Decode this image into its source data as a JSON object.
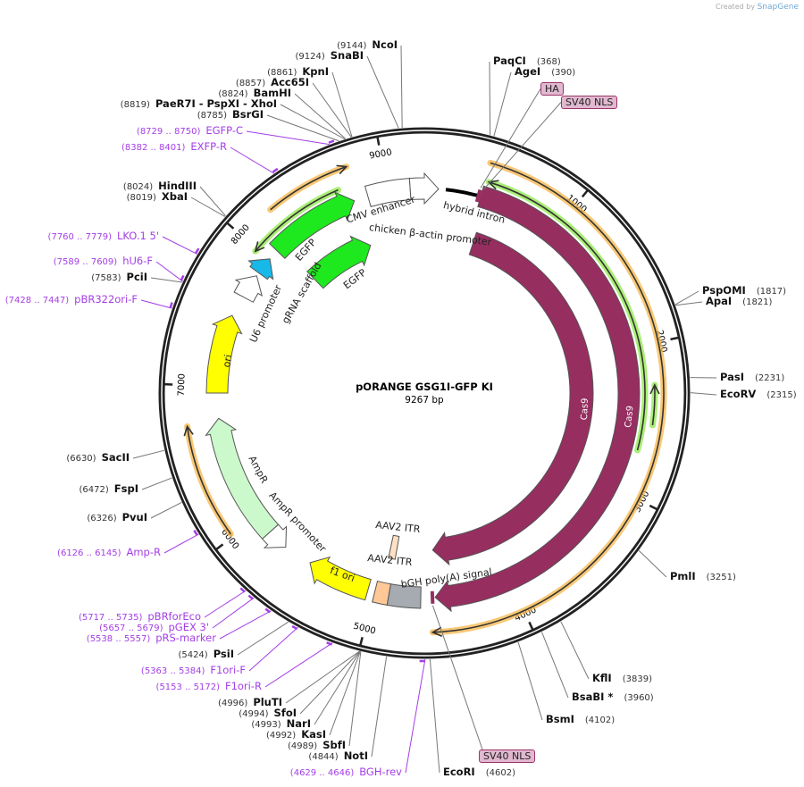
{
  "credit": {
    "prefix": "Created by",
    "brand": "SnapGene"
  },
  "plasmid": {
    "name": "pORANGE GSG1I-GFP KI",
    "length_label": "9267 bp",
    "length": 9267
  },
  "ticks": [
    "1000",
    "2000",
    "3000",
    "4000",
    "5000",
    "6000",
    "7000",
    "8000",
    "9000"
  ],
  "enzymes": [
    {
      "name": "NcoI",
      "pos": 9144
    },
    {
      "name": "SnaBI",
      "pos": 9124
    },
    {
      "name": "KpnI",
      "pos": 8861
    },
    {
      "name": "Acc65I",
      "pos": 8857
    },
    {
      "name": "BamHI",
      "pos": 8824
    },
    {
      "name": "PaeR7I   - PspXI   - XhoI",
      "pos": 8819
    },
    {
      "name": "BsrGI",
      "pos": 8785
    },
    {
      "name": "HindIII",
      "pos": 8024
    },
    {
      "name": "XbaI",
      "pos": 8019
    },
    {
      "name": "PciI",
      "pos": 7583
    },
    {
      "name": "SacII",
      "pos": 6630
    },
    {
      "name": "FspI",
      "pos": 6472
    },
    {
      "name": "PvuI",
      "pos": 6326
    },
    {
      "name": "PsiI",
      "pos": 5424
    },
    {
      "name": "PluTI",
      "pos": 4996
    },
    {
      "name": "SfoI",
      "pos": 4994
    },
    {
      "name": "NarI",
      "pos": 4993
    },
    {
      "name": "KasI",
      "pos": 4992
    },
    {
      "name": "SbfI",
      "pos": 4989
    },
    {
      "name": "NotI",
      "pos": 4844
    },
    {
      "name": "PaqCI",
      "pos": 368
    },
    {
      "name": "AgeI",
      "pos": 390
    },
    {
      "name": "PspOMI",
      "pos": 1817
    },
    {
      "name": "ApaI",
      "pos": 1821
    },
    {
      "name": "PasI",
      "pos": 2231
    },
    {
      "name": "EcoRV",
      "pos": 2315
    },
    {
      "name": "PmlI",
      "pos": 3251
    },
    {
      "name": "KflI",
      "pos": 3839
    },
    {
      "name": "BsaBI *",
      "pos": 3960
    },
    {
      "name": "BsmI",
      "pos": 4102
    },
    {
      "name": "EcoRI",
      "pos": 4602
    }
  ],
  "primers": [
    {
      "name": "EGFP-C",
      "range": "8729 .. 8750"
    },
    {
      "name": "EXFP-R",
      "range": "8382 .. 8401"
    },
    {
      "name": "LKO.1 5'",
      "range": "7760 .. 7779"
    },
    {
      "name": "hU6-F",
      "range": "7589 .. 7609"
    },
    {
      "name": "pBR322ori-F",
      "range": "7428 .. 7447"
    },
    {
      "name": "Amp-R",
      "range": "6126 .. 6145"
    },
    {
      "name": "pBRforEco",
      "range": "5717 .. 5735"
    },
    {
      "name": "pGEX 3'",
      "range": "5657 .. 5679"
    },
    {
      "name": "pRS-marker",
      "range": "5538 .. 5557"
    },
    {
      "name": "F1ori-F",
      "range": "5363 .. 5384"
    },
    {
      "name": "F1ori-R",
      "range": "5153 .. 5172"
    },
    {
      "name": "BGH-rev",
      "range": "4629 .. 4646"
    }
  ],
  "boxed_features": [
    {
      "name": "HA",
      "pos": 395
    },
    {
      "name": "SV40 NLS",
      "pos": 420
    },
    {
      "name": "SV40 NLS",
      "pos": 4575
    }
  ],
  "features": [
    {
      "name": "Cas9",
      "start": 412,
      "end": 4556,
      "track": "outer",
      "color": "#962e60",
      "arrow": "end"
    },
    {
      "name": "Cas9",
      "start": 463,
      "end": 4556,
      "track": "inner",
      "color": "#962e60",
      "arrow": "end"
    },
    {
      "name": "CMV enhancer",
      "start": 8855,
      "end": 9165,
      "track": "outer",
      "color": "#ffffff",
      "arrow": "none"
    },
    {
      "name": "chicken β-actin promoter",
      "start": 9165,
      "end": 103,
      "track": "outer",
      "color": "#ffffff",
      "arrow": "end"
    },
    {
      "name": "hybrid intron",
      "start": 155,
      "end": 386,
      "track": "line",
      "color": "#000000",
      "arrow": "none"
    },
    {
      "name": "EGFP",
      "start": 8083,
      "end": 8752,
      "track": "outer",
      "color": "#1ee81e",
      "arrow": "end"
    },
    {
      "name": "EGFP",
      "start": 8135,
      "end": 8752,
      "track": "inner",
      "color": "#1ee81e",
      "arrow": "end"
    },
    {
      "name": "U6 promoter",
      "start": 7670,
      "end": 7850,
      "track": "outer",
      "color": "#ffffff",
      "arrow": "end"
    },
    {
      "name": "gRNA scaffold",
      "start": 7876,
      "end": 8005,
      "track": "outer",
      "color": "#18b8e8",
      "arrow": "end"
    },
    {
      "name": "ori",
      "start": 6950,
      "end": 7516,
      "track": "mid",
      "color": "#ffff00",
      "arrow": "end"
    },
    {
      "name": "AmpR",
      "start": 5869,
      "end": 6770,
      "track": "mid",
      "color": "#ccf9cc",
      "arrow": "end"
    },
    {
      "name": "AmpR promoter",
      "start": 5714,
      "end": 5869,
      "track": "mid",
      "color": "#ffffff",
      "arrow": "start"
    },
    {
      "name": "f1 ori",
      "start": 5045,
      "end": 5508,
      "track": "outer",
      "color": "#ffff00",
      "arrow": "end"
    },
    {
      "name": "AAV2 ITR",
      "start": 4890,
      "end": 4994,
      "track": "outer",
      "color": "#ffc896",
      "arrow": "none"
    },
    {
      "name": "bGH poly(A) signal",
      "start": 4659,
      "end": 4890,
      "track": "outer",
      "color": "#a5abb0",
      "arrow": "none"
    },
    {
      "name": "AAV2 ITR",
      "start": 4890,
      "end": 4950,
      "track": "inner",
      "color": "#ffe0c4",
      "arrow": "none"
    }
  ],
  "orfs": [
    {
      "start": 412,
      "end": 4582,
      "color": "#f5b548",
      "arrow": "end",
      "ring": "o"
    },
    {
      "start": 438,
      "end": 2703,
      "color": "#8ee84a",
      "arrow": "start",
      "ring": "g"
    },
    {
      "start": 2265,
      "end": 2523,
      "color": "#8ee84a",
      "arrow": "start",
      "ring": "m"
    },
    {
      "start": 8237,
      "end": 8778,
      "color": "#f5b548",
      "arrow": "end",
      "ring": "o"
    },
    {
      "start": 7980,
      "end": 8675,
      "color": "#8ee84a",
      "arrow": "start",
      "ring": "g"
    },
    {
      "start": 6023,
      "end": 6744,
      "color": "#f5b548",
      "arrow": "end",
      "ring": "o"
    }
  ]
}
